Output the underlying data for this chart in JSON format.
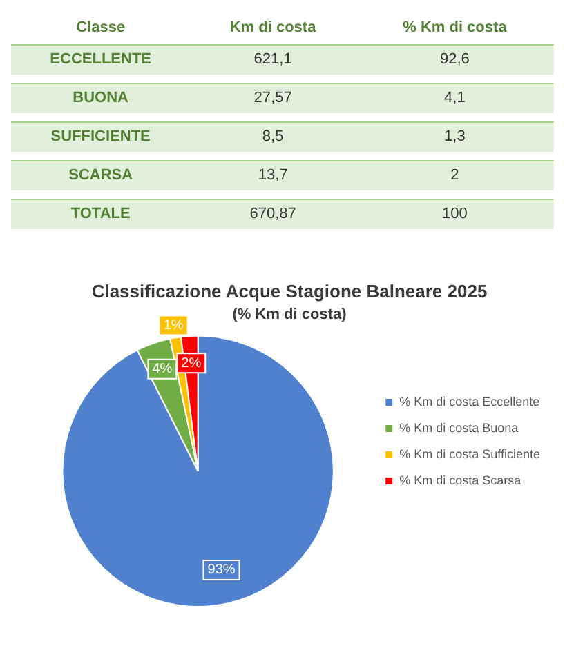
{
  "chart_data": [
    {
      "type": "other",
      "xlabel": "Classe",
      "categories": [
        "ECCELLENTE",
        "BUONA",
        "SUFFICIENTE",
        "SCARSA",
        "TOTALE"
      ],
      "series": [
        {
          "name": "Km di costa",
          "values": [
            621.1,
            27.57,
            8.5,
            13.7,
            670.87
          ],
          "value_labels": [
            "621,1",
            "27,57",
            "8,5",
            "13,7",
            "670,87"
          ]
        },
        {
          "name": "% Km di costa",
          "values": [
            92.6,
            4.1,
            1.3,
            2,
            100
          ],
          "value_labels": [
            "92,6",
            "4,1",
            "1,3",
            "2",
            "100"
          ]
        }
      ]
    },
    {
      "type": "pie",
      "title": "Classificazione Acque Stagione Balneare 2025",
      "subtitle": "(% Km di costa)",
      "categories": [
        "% Km di costa Eccellente",
        "% Km di costa Buona",
        "% Km di costa Sufficiente",
        "% Km di costa Scarsa"
      ],
      "values": [
        92.6,
        4.1,
        1.3,
        2
      ],
      "colors": [
        "#4f81cf",
        "#70ad47",
        "#ffc000",
        "#ff0000"
      ],
      "value_labels": [
        "93%",
        "4%",
        "1%",
        "2%"
      ],
      "legend": "right"
    }
  ]
}
